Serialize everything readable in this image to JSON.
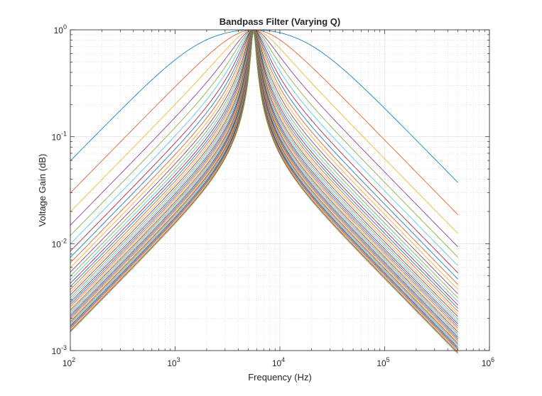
{
  "chart_data": {
    "type": "line",
    "title": "Bandpass Filter (Varying Q)",
    "xlabel": "Frequency (Hz)",
    "ylabel": "Voltage Gain (dB)",
    "xscale": "log",
    "yscale": "log",
    "xlim": [
      100,
      1000000
    ],
    "ylim": [
      0.001,
      1
    ],
    "x_ticks": [
      100,
      1000,
      10000,
      100000,
      1000000
    ],
    "x_tick_labels": [
      {
        "base": "10",
        "exp": "2"
      },
      {
        "base": "10",
        "exp": "3"
      },
      {
        "base": "10",
        "exp": "4"
      },
      {
        "base": "10",
        "exp": "5"
      },
      {
        "base": "10",
        "exp": "6"
      }
    ],
    "y_ticks": [
      0.001,
      0.01,
      0.1,
      1
    ],
    "y_tick_labels": [
      {
        "base": "10",
        "exp": "-3"
      },
      {
        "base": "10",
        "exp": "-2"
      },
      {
        "base": "10",
        "exp": "-1"
      },
      {
        "base": "10",
        "exp": "0"
      }
    ],
    "grid": true,
    "minor_grid": true,
    "legend": "none",
    "center_frequency_hz": 5600,
    "frequency_range_hz": [
      100,
      500000
    ],
    "q_values": [
      0.3,
      0.6,
      0.9,
      1.2,
      1.5,
      1.8,
      2.1,
      2.4,
      2.7,
      3.0,
      3.3,
      3.6,
      3.9,
      4.2,
      4.5,
      4.8,
      5.1,
      5.4,
      5.7,
      6.0,
      6.3,
      6.6,
      6.9,
      7.2,
      7.5,
      7.8,
      8.1,
      8.4,
      8.7,
      9.0,
      9.3,
      9.6,
      9.9,
      10.2,
      10.5,
      10.8,
      11.1,
      11.4,
      11.7,
      12.0
    ],
    "series_colors": [
      "#0072BD",
      "#D95319",
      "#EDB120",
      "#7E2F8E",
      "#77AC30",
      "#4DBEEE",
      "#A2142F"
    ]
  }
}
